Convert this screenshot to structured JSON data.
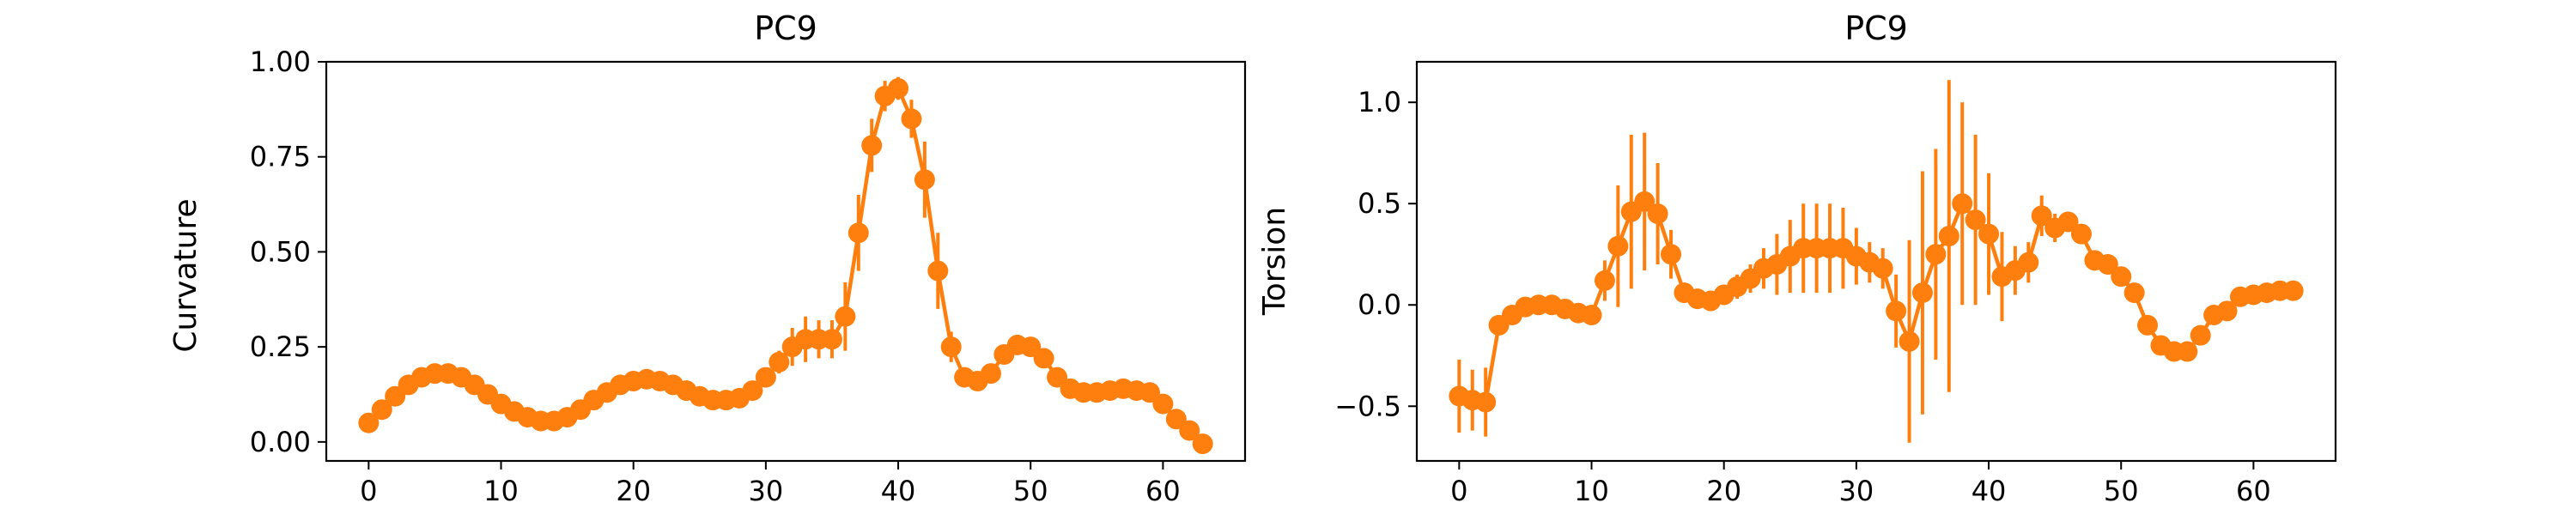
{
  "chart_data": [
    {
      "type": "line",
      "title": "PC9",
      "xlabel": "",
      "ylabel": "Curvature",
      "xlim": [
        -3.2,
        66.2
      ],
      "ylim": [
        -0.05,
        1.0
      ],
      "xticks": [
        "0",
        "10",
        "20",
        "30",
        "40",
        "50",
        "60"
      ],
      "yticks": [
        "0.00",
        "0.25",
        "0.50",
        "0.75",
        "1.00"
      ],
      "grid": false,
      "series": [
        {
          "color": "#ff7f0e",
          "marker": "circle",
          "x": [
            0,
            1,
            2,
            3,
            4,
            5,
            6,
            7,
            8,
            9,
            10,
            11,
            12,
            13,
            14,
            15,
            16,
            17,
            18,
            19,
            20,
            21,
            22,
            23,
            24,
            25,
            26,
            27,
            28,
            29,
            30,
            31,
            32,
            33,
            34,
            35,
            36,
            37,
            38,
            39,
            40,
            41,
            42,
            43,
            44,
            45,
            46,
            47,
            48,
            49,
            50,
            51,
            52,
            53,
            54,
            55,
            56,
            57,
            58,
            59,
            60,
            61,
            62,
            63
          ],
          "y": [
            0.05,
            0.085,
            0.12,
            0.15,
            0.17,
            0.18,
            0.18,
            0.17,
            0.15,
            0.125,
            0.1,
            0.08,
            0.065,
            0.055,
            0.055,
            0.065,
            0.085,
            0.11,
            0.13,
            0.15,
            0.16,
            0.165,
            0.16,
            0.15,
            0.135,
            0.12,
            0.11,
            0.11,
            0.115,
            0.135,
            0.17,
            0.21,
            0.25,
            0.27,
            0.27,
            0.27,
            0.33,
            0.55,
            0.78,
            0.91,
            0.93,
            0.85,
            0.69,
            0.45,
            0.25,
            0.17,
            0.16,
            0.18,
            0.23,
            0.255,
            0.25,
            0.22,
            0.17,
            0.14,
            0.13,
            0.13,
            0.135,
            0.14,
            0.135,
            0.13,
            0.1,
            0.06,
            0.03,
            -0.005
          ],
          "err": [
            0.005,
            0.005,
            0.005,
            0.005,
            0.006,
            0.006,
            0.006,
            0.006,
            0.006,
            0.006,
            0.005,
            0.005,
            0.005,
            0.005,
            0.005,
            0.005,
            0.005,
            0.006,
            0.006,
            0.006,
            0.006,
            0.006,
            0.006,
            0.006,
            0.006,
            0.006,
            0.006,
            0.006,
            0.006,
            0.008,
            0.015,
            0.03,
            0.05,
            0.06,
            0.05,
            0.05,
            0.09,
            0.1,
            0.07,
            0.04,
            0.03,
            0.05,
            0.1,
            0.1,
            0.04,
            0.02,
            0.015,
            0.015,
            0.015,
            0.015,
            0.015,
            0.012,
            0.01,
            0.008,
            0.008,
            0.008,
            0.008,
            0.008,
            0.008,
            0.008,
            0.008,
            0.008,
            0.008,
            0.008
          ]
        }
      ]
    },
    {
      "type": "line",
      "title": "PC9",
      "xlabel": "",
      "ylabel": "Torsion",
      "xlim": [
        -3.2,
        66.2
      ],
      "ylim": [
        -0.77,
        1.2
      ],
      "xticks": [
        "0",
        "10",
        "20",
        "30",
        "40",
        "50",
        "60"
      ],
      "yticks": [
        "−0.5",
        "0.0",
        "0.5",
        "1.0"
      ],
      "grid": false,
      "series": [
        {
          "color": "#ff7f0e",
          "marker": "circle",
          "x": [
            0,
            1,
            2,
            3,
            4,
            5,
            6,
            7,
            8,
            9,
            10,
            11,
            12,
            13,
            14,
            15,
            16,
            17,
            18,
            19,
            20,
            21,
            22,
            23,
            24,
            25,
            26,
            27,
            28,
            29,
            30,
            31,
            32,
            33,
            34,
            35,
            36,
            37,
            38,
            39,
            40,
            41,
            42,
            43,
            44,
            45,
            46,
            47,
            48,
            49,
            50,
            51,
            52,
            53,
            54,
            55,
            56,
            57,
            58,
            59,
            60,
            61,
            62,
            63
          ],
          "y": [
            -0.45,
            -0.47,
            -0.48,
            -0.1,
            -0.05,
            -0.01,
            0.0,
            0.0,
            -0.02,
            -0.04,
            -0.05,
            0.12,
            0.29,
            0.46,
            0.51,
            0.45,
            0.25,
            0.06,
            0.03,
            0.02,
            0.05,
            0.09,
            0.13,
            0.18,
            0.2,
            0.24,
            0.28,
            0.28,
            0.28,
            0.28,
            0.24,
            0.21,
            0.18,
            -0.03,
            -0.18,
            0.06,
            0.25,
            0.34,
            0.5,
            0.42,
            0.35,
            0.14,
            0.17,
            0.21,
            0.44,
            0.38,
            0.41,
            0.35,
            0.22,
            0.2,
            0.14,
            0.06,
            -0.1,
            -0.2,
            -0.23,
            -0.23,
            -0.15,
            -0.05,
            -0.03,
            0.04,
            0.05,
            0.06,
            0.07,
            0.07
          ],
          "err": [
            0.18,
            0.15,
            0.17,
            0.05,
            0.03,
            0.03,
            0.03,
            0.03,
            0.03,
            0.04,
            0.04,
            0.1,
            0.3,
            0.38,
            0.34,
            0.25,
            0.12,
            0.05,
            0.05,
            0.05,
            0.05,
            0.06,
            0.07,
            0.1,
            0.15,
            0.18,
            0.22,
            0.22,
            0.22,
            0.2,
            0.14,
            0.1,
            0.1,
            0.18,
            0.5,
            0.6,
            0.52,
            0.77,
            0.5,
            0.42,
            0.3,
            0.22,
            0.12,
            0.1,
            0.1,
            0.07,
            0.05,
            0.05,
            0.05,
            0.05,
            0.04,
            0.04,
            0.03,
            0.03,
            0.03,
            0.03,
            0.03,
            0.02,
            0.02,
            0.02,
            0.02,
            0.02,
            0.02,
            0.02
          ]
        }
      ]
    }
  ]
}
